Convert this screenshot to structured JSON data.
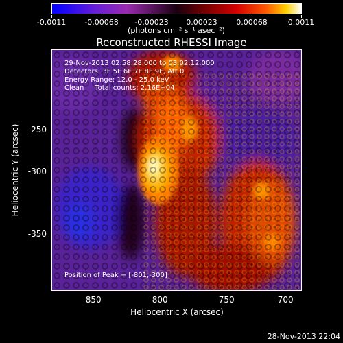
{
  "colorbar": {
    "tick_labels": [
      "-0.0011",
      "-0.00068",
      "-0.00023",
      "0.00023",
      "0.00068",
      "0.0011"
    ],
    "units": "(photons cm⁻² s⁻¹ asec⁻²)"
  },
  "title": "Reconstructed RHESSI Image",
  "info": {
    "line1": "29-Nov-2013 02:58:28.000 to 03:02:12.000",
    "line2": "Detectors: 3F 5F 6F 7F 8F 9F, Att 0",
    "line3": "Energy Range: 12.0 - 25.0 keV",
    "line4": "Clean     Total counts: 2.16E+04"
  },
  "peak_text": "Position of Peak = [-801,-300]",
  "axes": {
    "xlabel": "Heliocentric X (arcsec)",
    "ylabel": "Heliocentric Y (arcsec)",
    "xticks": [
      "-850",
      "-800",
      "-750",
      "-700"
    ],
    "yticks": [
      "-250",
      "-300",
      "-350"
    ]
  },
  "footer": "28-Nov-2013 22:04"
}
